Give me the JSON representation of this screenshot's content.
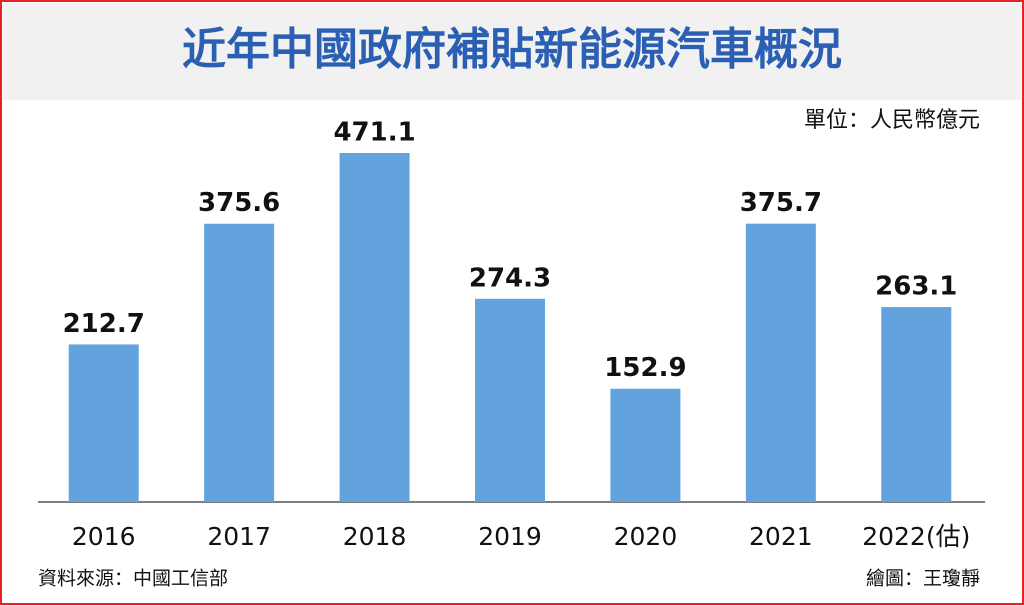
{
  "chart_data": {
    "type": "bar",
    "title": "近年中國政府補貼新能源汽車概況",
    "unit": "單位：人民幣億元",
    "source": "資料來源：中國工信部",
    "credit": "繪圖：王瓊靜",
    "categories": [
      "2016",
      "2017",
      "2018",
      "2019",
      "2020",
      "2021",
      "2022(估)"
    ],
    "values": [
      212.7,
      375.6,
      471.1,
      274.3,
      152.9,
      375.7,
      263.1
    ],
    "color": "#62a3de"
  }
}
